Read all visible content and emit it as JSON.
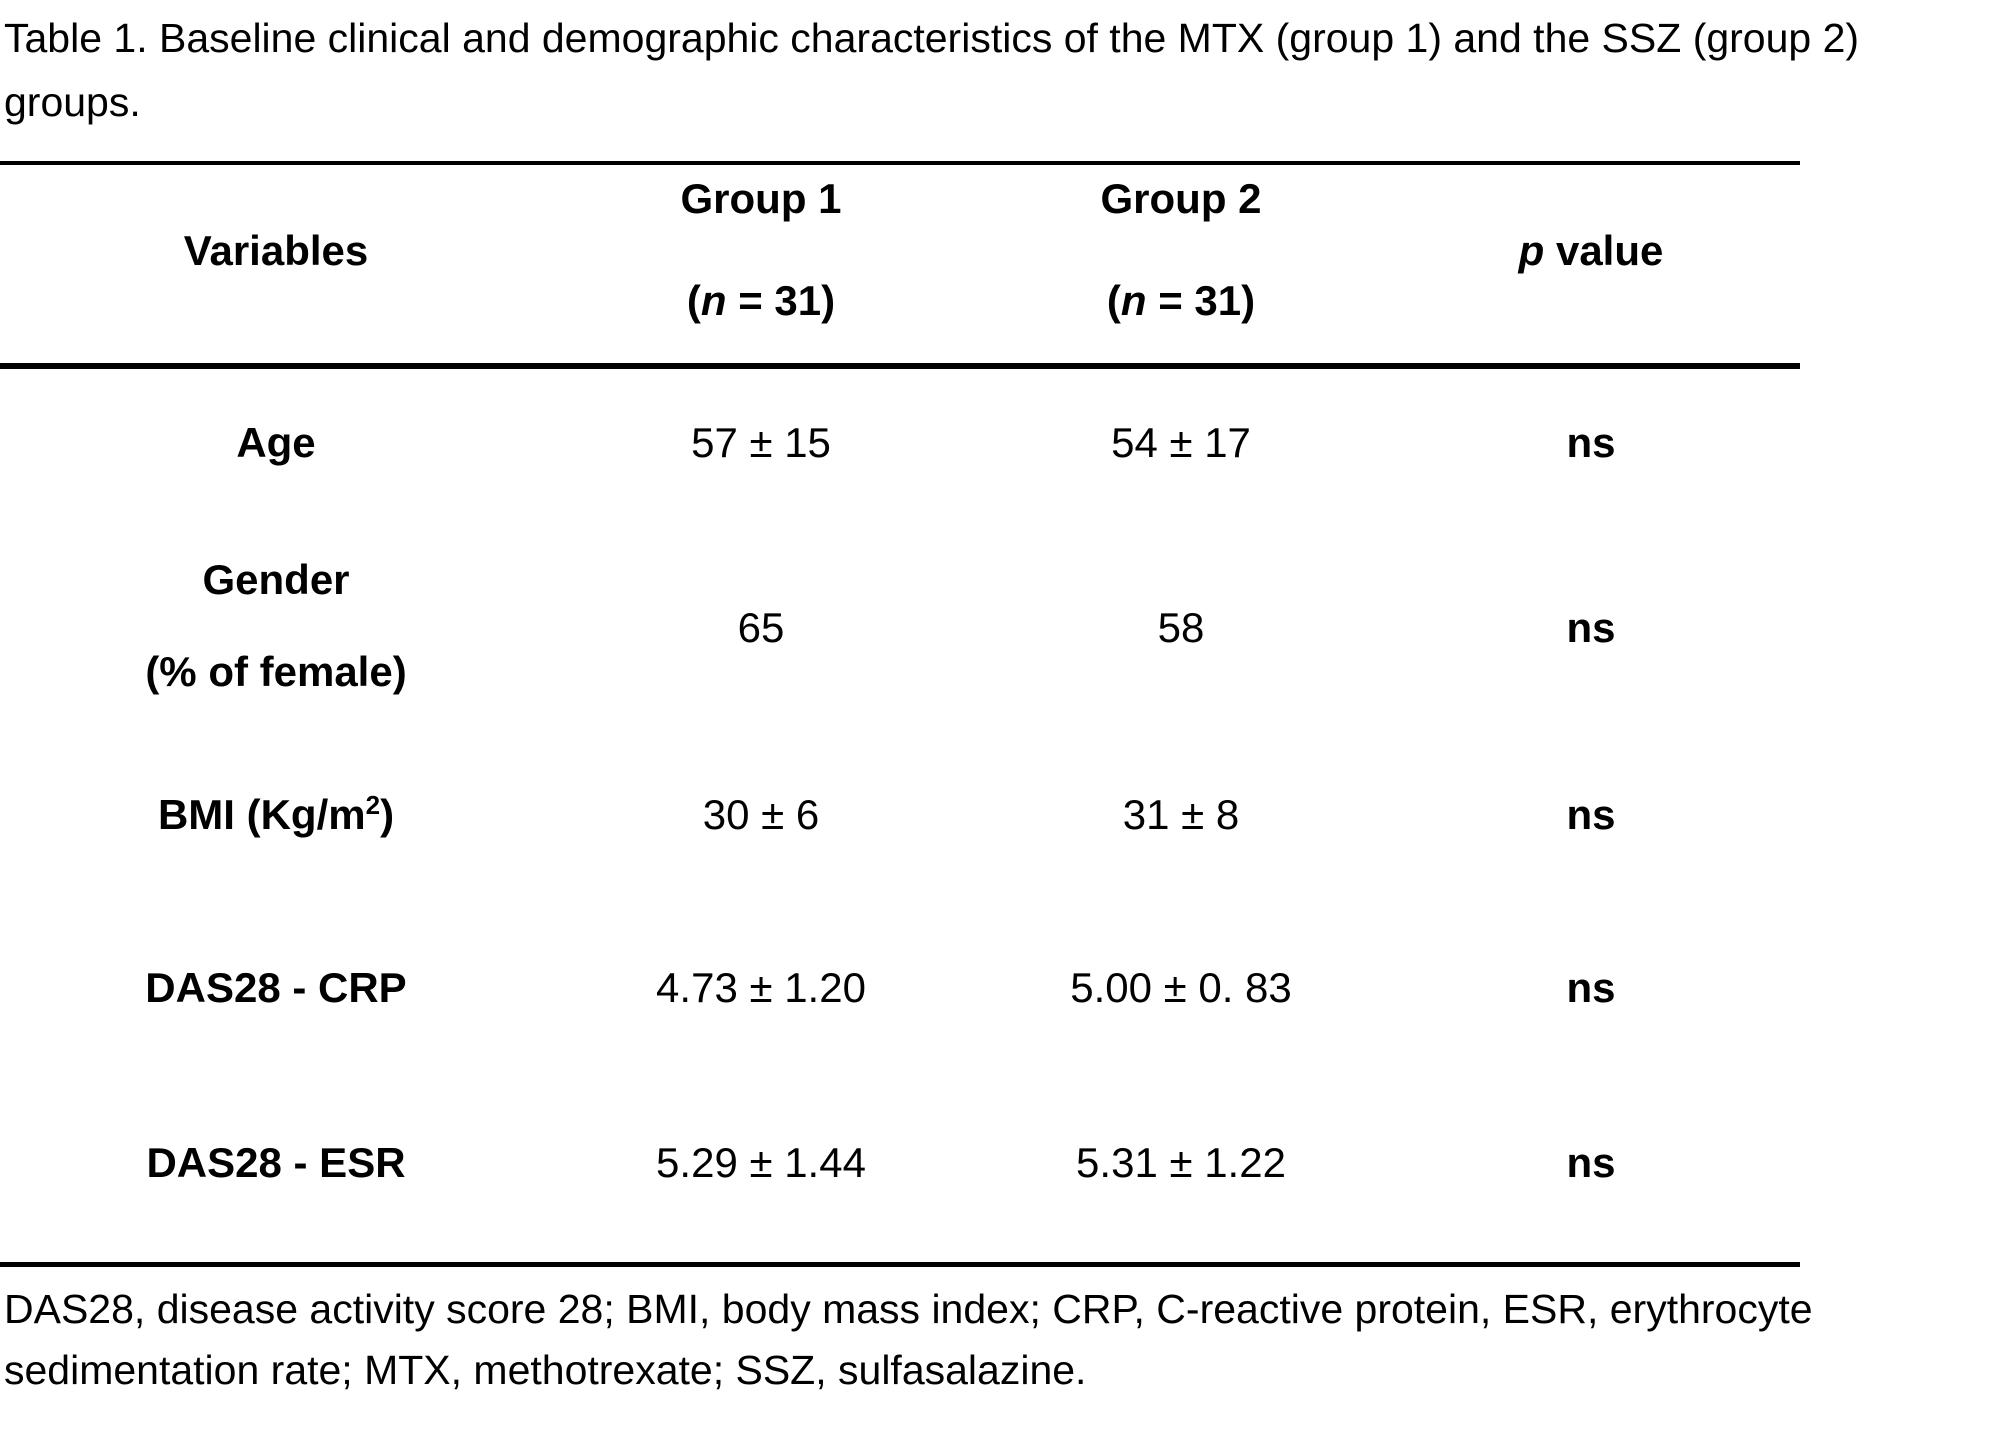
{
  "page": {
    "background_color": "#ffffff",
    "text_color": "#000000"
  },
  "title": {
    "line1": "Table 1. Baseline clinical and demographic characteristics of the MTX (group 1) and the SSZ (group 2)",
    "line2": "groups."
  },
  "table": {
    "header": {
      "variables": "Variables",
      "group1_title": "Group 1",
      "group2_title": "Group 2",
      "n_open": "(",
      "n_italic": "n",
      "n_rest": " = 31)",
      "p_italic": "p",
      "p_rest": " value"
    },
    "rows": [
      {
        "label": "Age",
        "group1": "57 ± 15",
        "group2": "54 ± 17",
        "p": "ns"
      },
      {
        "label": "Gender",
        "label2": "(% of female)",
        "group1": "65",
        "group2": "58",
        "p": "ns"
      },
      {
        "label_main": "BMI (Kg/m",
        "label_sup": "2",
        "label_tail": ")",
        "group1": "30 ± 6",
        "group2": "31 ± 8",
        "p": "ns"
      },
      {
        "label": "DAS28 - CRP",
        "group1": "4.73 ± 1.20",
        "group2": "5.00 ± 0. 83",
        "p": "ns"
      },
      {
        "label": "DAS28 - ESR",
        "group1": "5.29 ± 1.44",
        "group2": "5.31 ± 1.22",
        "p": "ns"
      }
    ]
  },
  "footnote": {
    "line1": "DAS28, disease activity score 28; BMI, body mass index; CRP, C-reactive protein, ESR, erythrocyte",
    "line2": "sedimentation rate; MTX, methotrexate; SSZ, sulfasalazine."
  }
}
